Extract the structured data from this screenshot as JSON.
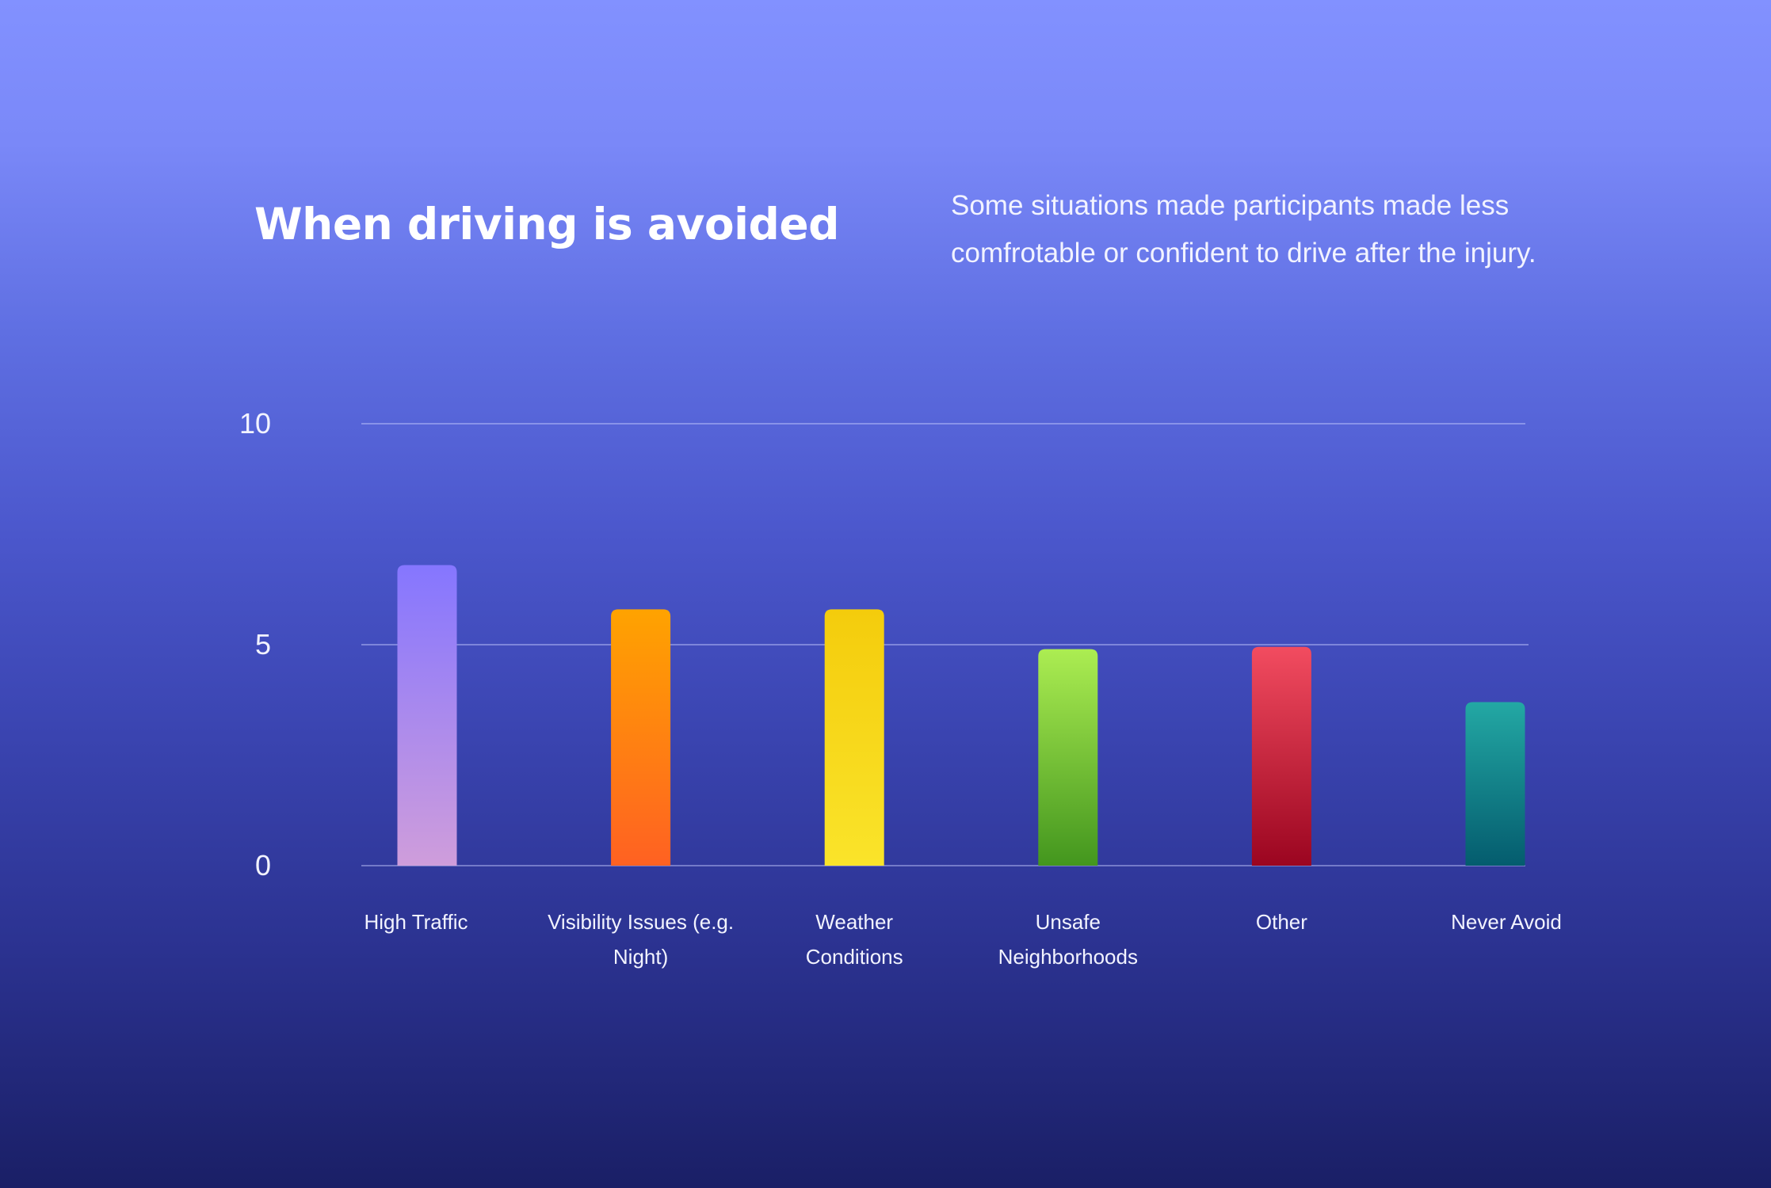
{
  "chart_data": {
    "type": "bar",
    "title": "When driving is avoided",
    "subtitle": "Some situations made participants made less comfrotable or confident to drive after the injury.",
    "xlabel": "",
    "ylabel": "",
    "ylim": [
      0,
      10
    ],
    "yticks": [
      0,
      5,
      10
    ],
    "grid": true,
    "categories": [
      [
        "High Traffic"
      ],
      [
        "Visibility Issues (e.g.",
        "Night)"
      ],
      [
        "Weather",
        "Conditions"
      ],
      [
        "Unsafe",
        "Neighborhoods"
      ],
      [
        "Other"
      ],
      [
        "Never Avoid"
      ]
    ],
    "values": [
      6.8,
      5.8,
      5.8,
      4.9,
      4.95,
      3.7
    ],
    "colors": [
      [
        "#8576ff",
        "#cf9ddb"
      ],
      [
        "#ffa300",
        "#ff6122"
      ],
      [
        "#f4cc0c",
        "#fae42a"
      ],
      [
        "#aced52",
        "#43961e"
      ],
      [
        "#f24c60",
        "#9b0520"
      ],
      [
        "#23a8a4",
        "#045c6e"
      ]
    ]
  }
}
